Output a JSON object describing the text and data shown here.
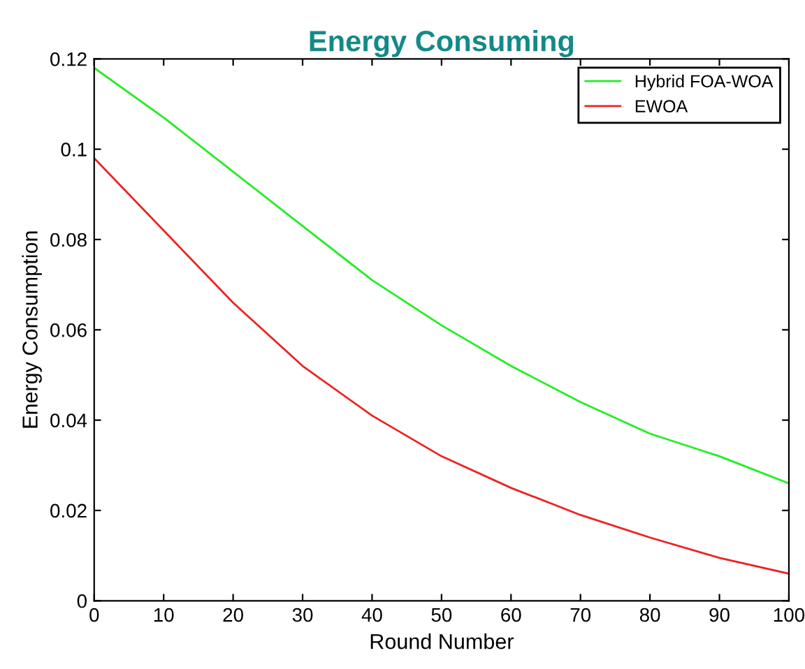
{
  "chart_data": {
    "type": "line",
    "title": "Energy Consuming",
    "xlabel": "Round Number",
    "ylabel": "Energy Consumption",
    "x": [
      0,
      10,
      20,
      30,
      40,
      50,
      60,
      70,
      80,
      90,
      100
    ],
    "series": [
      {
        "name": "Hybrid FOA-WOA",
        "color": "#22ee22",
        "values": [
          0.118,
          0.107,
          0.095,
          0.083,
          0.071,
          0.061,
          0.052,
          0.044,
          0.037,
          0.032,
          0.026
        ]
      },
      {
        "name": "EWOA",
        "color": "#ee2222",
        "values": [
          0.098,
          0.082,
          0.066,
          0.052,
          0.041,
          0.032,
          0.025,
          0.019,
          0.014,
          0.0095,
          0.006
        ]
      }
    ],
    "xlim": [
      0,
      100
    ],
    "ylim": [
      0,
      0.12
    ],
    "xticks": [
      0,
      10,
      20,
      30,
      40,
      50,
      60,
      70,
      80,
      90,
      100
    ],
    "yticks": [
      0,
      0.02,
      0.04,
      0.06,
      0.08,
      {
        "value": 0.1,
        "label": "0.1"
      },
      0.12
    ],
    "grid": false,
    "legend": "top right",
    "marker": "none",
    "line_style": "solid"
  }
}
